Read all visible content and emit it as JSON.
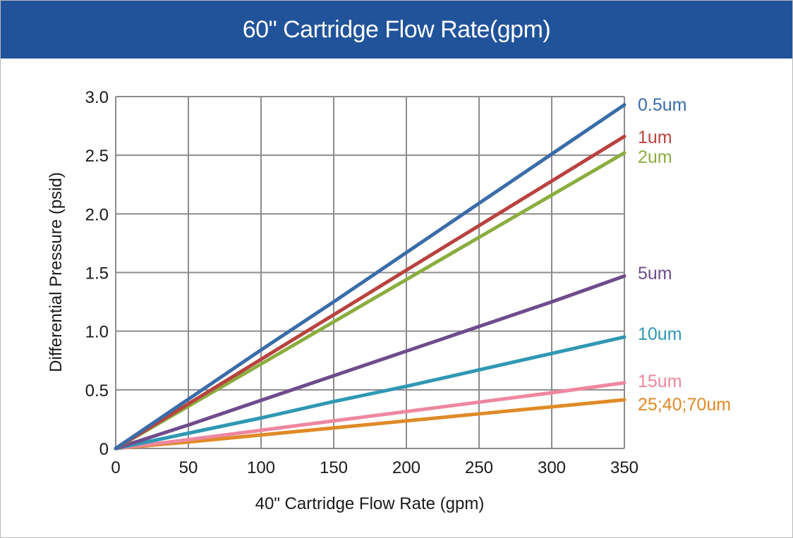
{
  "header": {
    "title": "60\" Cartridge Flow Rate(gpm)"
  },
  "colors": {
    "header_bg": "#21539a",
    "grid": "#8c8c8c"
  },
  "chart_data": {
    "type": "line",
    "title": "60\" Cartridge Flow Rate(gpm)",
    "xlabel": "40\" Cartridge Flow Rate (gpm)",
    "ylabel": "Differential Pressure (psid)",
    "xlim": [
      0,
      350
    ],
    "ylim": [
      0,
      3.0
    ],
    "grid": true,
    "legend": "right (inline labels at line ends)",
    "x_ticks": [
      "0",
      "50",
      "100",
      "150",
      "200",
      "250",
      "300",
      "350"
    ],
    "x_tick_values": [
      0,
      50,
      100,
      150,
      200,
      250,
      300,
      350
    ],
    "y_ticks": [
      "0",
      "0.5",
      "1.0",
      "1.5",
      "2.0",
      "2.5",
      "3.0"
    ],
    "y_tick_values": [
      0,
      0.5,
      1.0,
      1.5,
      2.0,
      2.5,
      3.0
    ],
    "x": [
      0,
      50,
      100,
      150,
      200,
      250,
      300,
      350
    ],
    "series": [
      {
        "name": "0.5um",
        "color": "#3a6ca8",
        "values": [
          0,
          0.42,
          0.84,
          1.25,
          1.67,
          2.09,
          2.51,
          2.93
        ]
      },
      {
        "name": "1um",
        "color": "#b8433f",
        "values": [
          0,
          0.38,
          0.76,
          1.14,
          1.52,
          1.9,
          2.28,
          2.66
        ]
      },
      {
        "name": "2um",
        "color": "#8bad3f",
        "values": [
          0,
          0.36,
          0.72,
          1.08,
          1.44,
          1.8,
          2.16,
          2.52
        ]
      },
      {
        "name": "5um",
        "color": "#6e4c8c",
        "values": [
          0,
          0.2,
          0.41,
          0.62,
          0.83,
          1.04,
          1.25,
          1.47
        ]
      },
      {
        "name": "10um",
        "color": "#2f98b3",
        "values": [
          0,
          0.13,
          0.26,
          0.4,
          0.53,
          0.67,
          0.81,
          0.95
        ]
      },
      {
        "name": "15um",
        "color": "#ee879f",
        "values": [
          0,
          0.075,
          0.155,
          0.235,
          0.315,
          0.395,
          0.475,
          0.56
        ]
      },
      {
        "name": "25;40;70um",
        "color": "#e08a27",
        "values": [
          0,
          0.055,
          0.115,
          0.175,
          0.235,
          0.295,
          0.355,
          0.415
        ]
      }
    ]
  }
}
